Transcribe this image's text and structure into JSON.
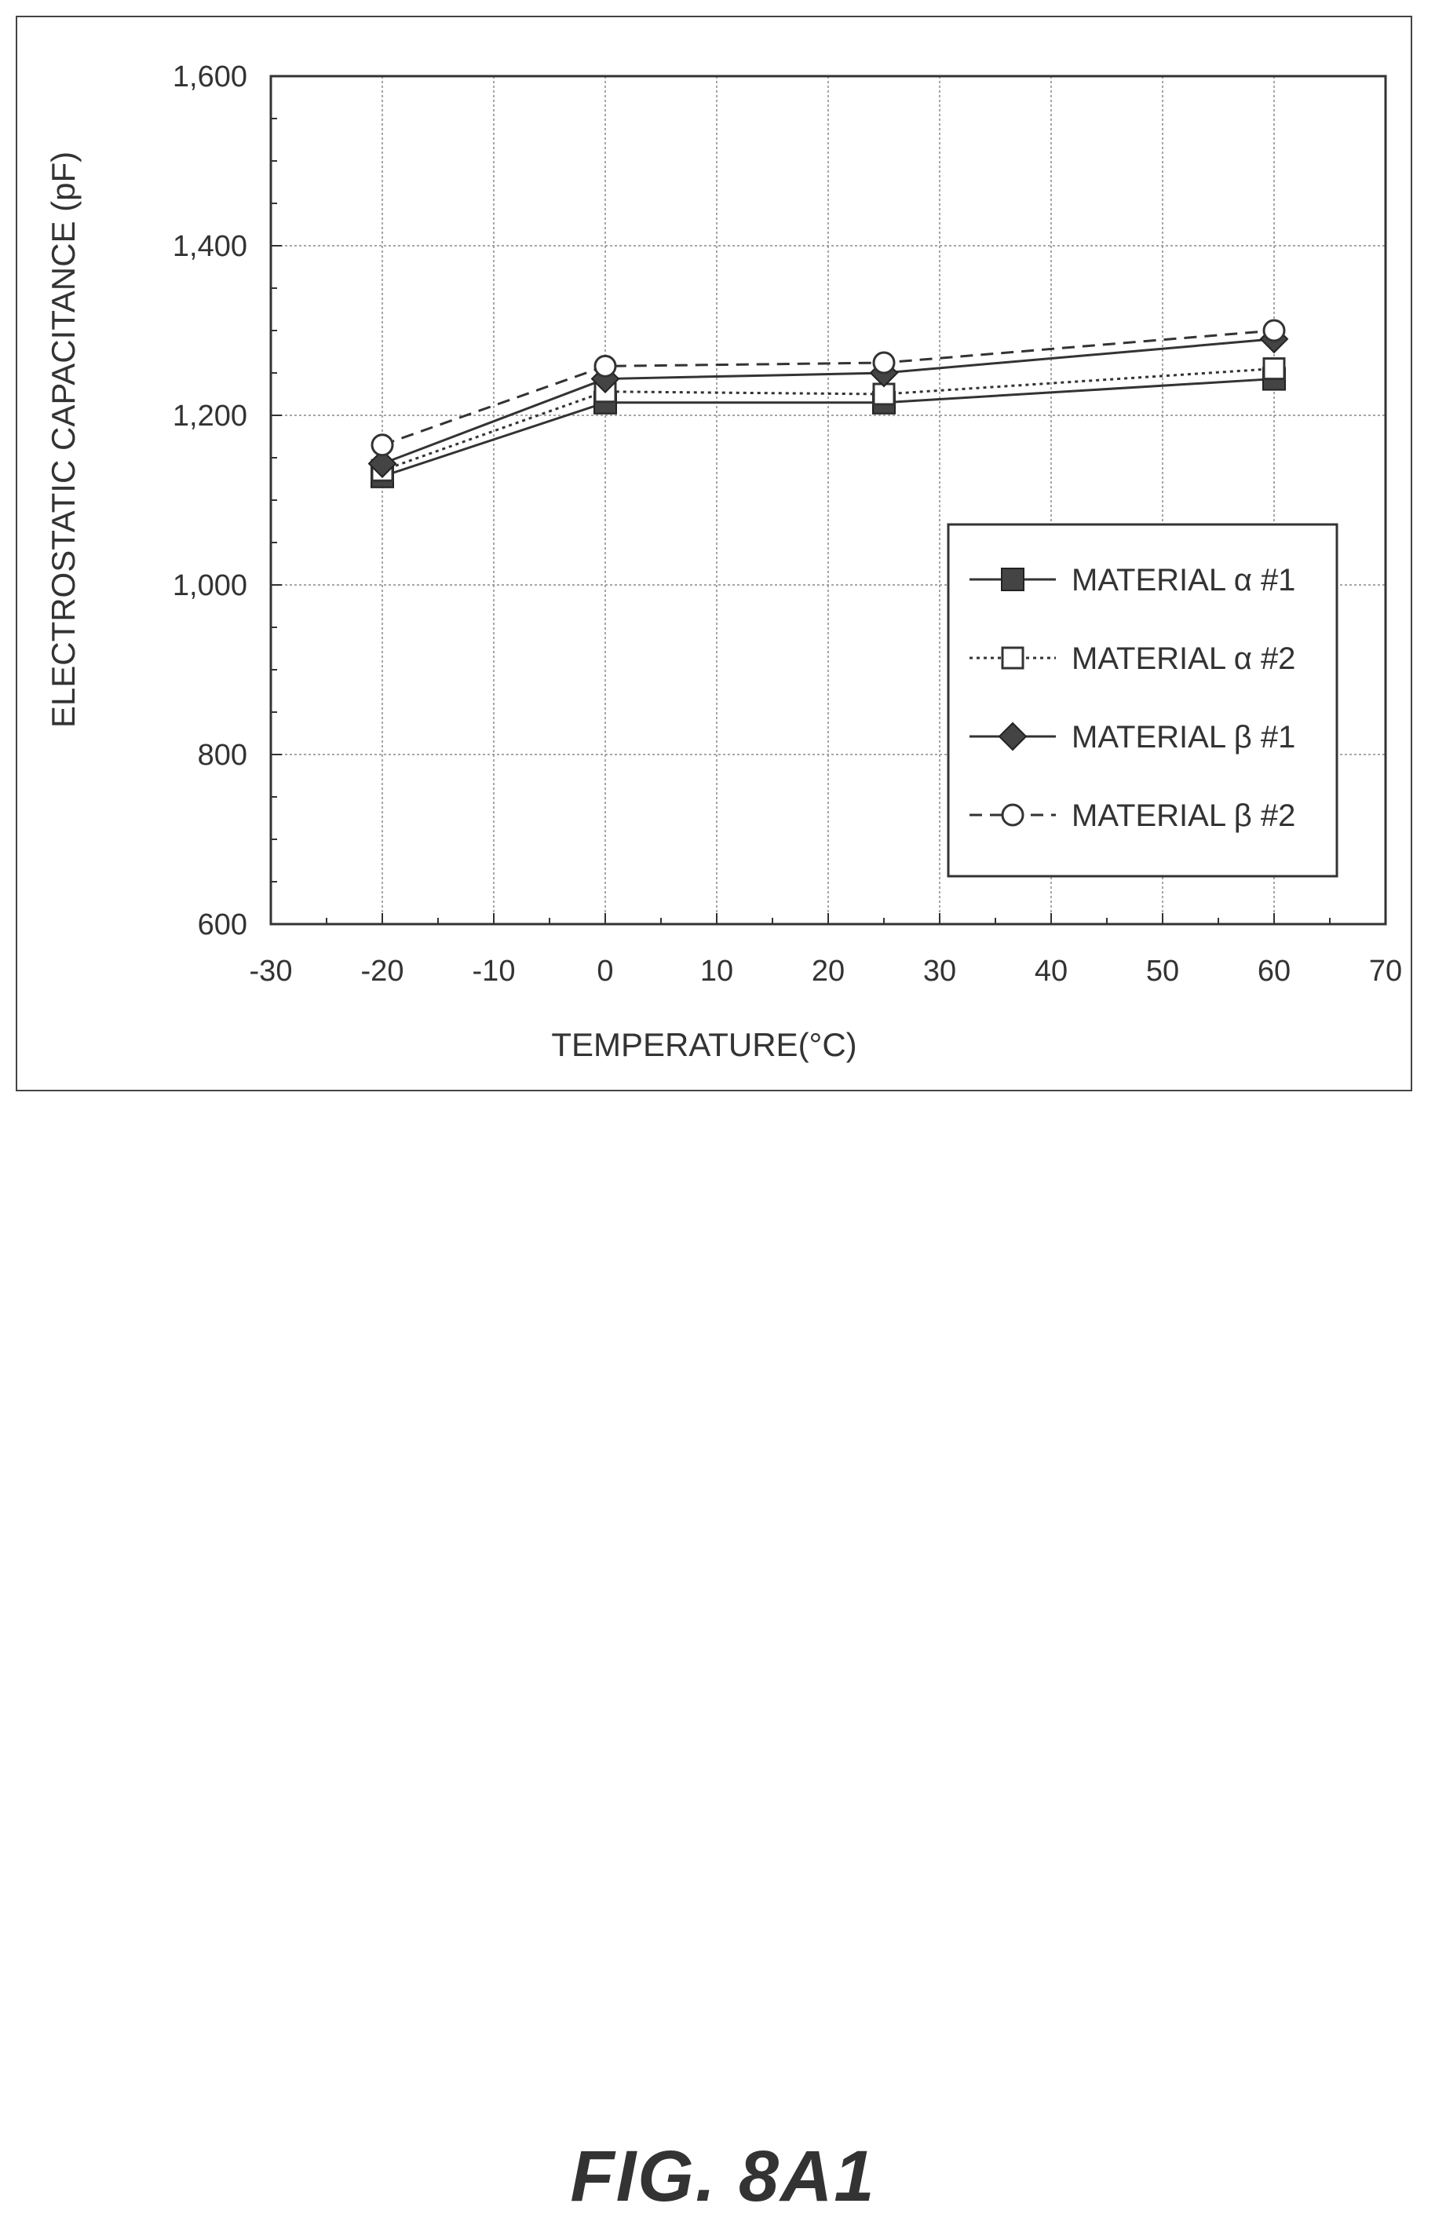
{
  "figure_label": "FIG. 8A1",
  "chart_data": {
    "type": "line",
    "xlabel": "TEMPERATURE(°C)",
    "ylabel": "ELECTROSTATIC CAPACITANCE (pF)",
    "xlim": [
      -30,
      70
    ],
    "ylim": [
      600,
      1600
    ],
    "x_ticks": [
      -30,
      -20,
      -10,
      0,
      10,
      20,
      30,
      40,
      50,
      60,
      70
    ],
    "x_tick_labels": [
      "-30",
      "-20",
      "-10",
      "0",
      "10",
      "20",
      "30",
      "40",
      "50",
      "60",
      "70"
    ],
    "y_ticks": [
      600,
      800,
      1000,
      1200,
      1400,
      1600
    ],
    "y_tick_labels": [
      "600",
      "800",
      "1,000",
      "1,200",
      "1,400",
      "1,600"
    ],
    "grid": true,
    "legend_position": "right",
    "x": [
      -20,
      0,
      25,
      60
    ],
    "series": [
      {
        "name": "MATERIAL α #1",
        "values": [
          1128,
          1215,
          1215,
          1243
        ],
        "marker": "filled-square",
        "line": "solid"
      },
      {
        "name": "MATERIAL α #2",
        "values": [
          1135,
          1228,
          1225,
          1255
        ],
        "marker": "open-square",
        "line": "dotted"
      },
      {
        "name": "MATERIAL β #1",
        "values": [
          1143,
          1243,
          1250,
          1290
        ],
        "marker": "filled-diamond",
        "line": "solid"
      },
      {
        "name": "MATERIAL β #2",
        "values": [
          1165,
          1258,
          1262,
          1300
        ],
        "marker": "open-circle",
        "line": "dashed"
      }
    ]
  }
}
